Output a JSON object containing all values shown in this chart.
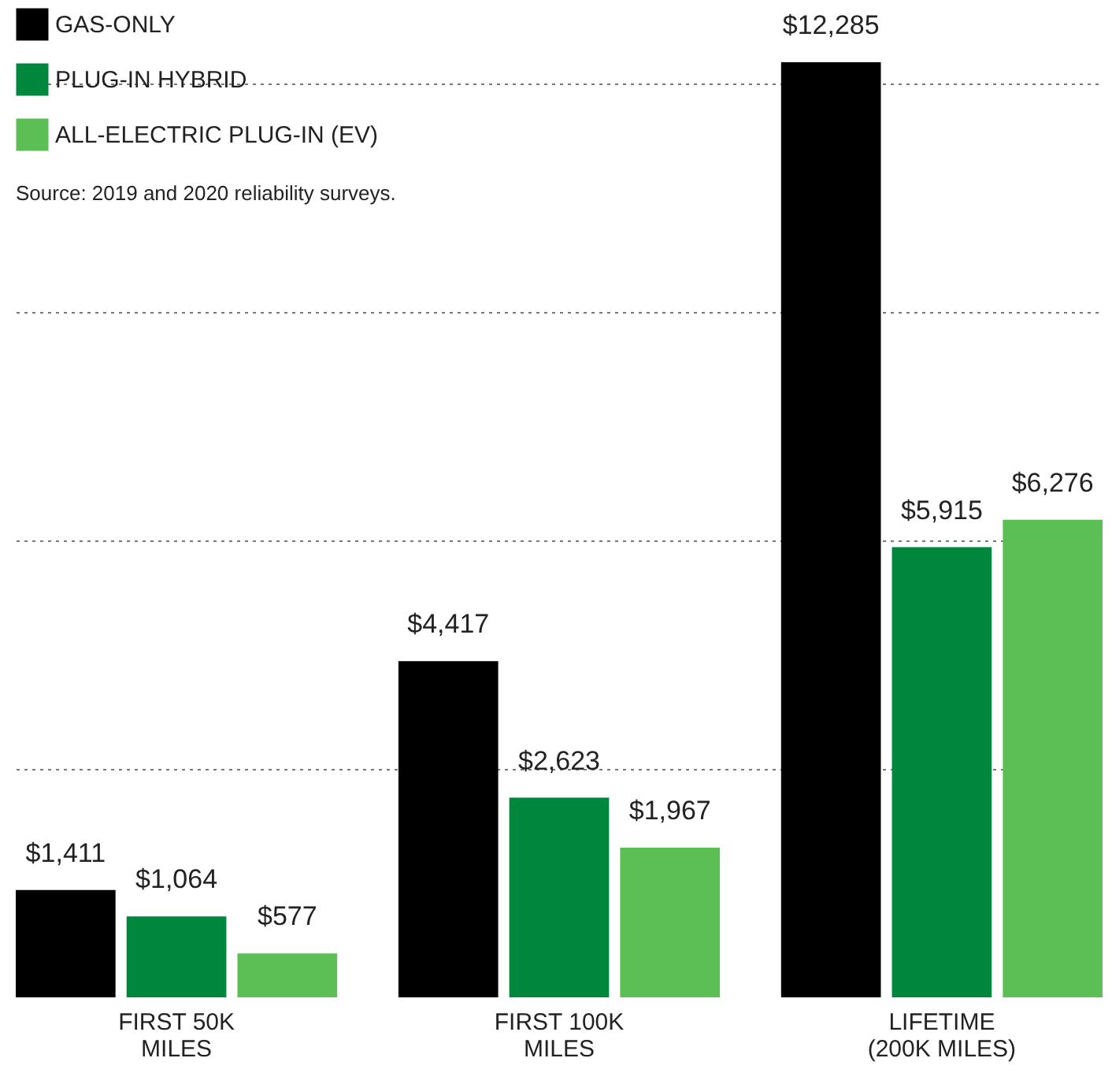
{
  "chart_data": {
    "type": "bar",
    "categories": [
      "FIRST 50K MILES",
      "FIRST 100K MILES",
      "LIFETIME (200K MILES)"
    ],
    "series": [
      {
        "name": "GAS-ONLY",
        "color": "#000000",
        "values": [
          1411,
          4417,
          12285
        ],
        "value_labels": [
          "$1,411",
          "$4,417",
          "$12,285"
        ]
      },
      {
        "name": "PLUG-IN HYBRID",
        "color": "#00873e",
        "values": [
          1064,
          2623,
          5915
        ],
        "value_labels": [
          "$1,064",
          "$2,623",
          "$5,915"
        ]
      },
      {
        "name": "ALL-ELECTRIC PLUG-IN (EV)",
        "color": "#5cbf55",
        "values": [
          577,
          1967,
          6276
        ],
        "value_labels": [
          "$577",
          "$1,967",
          "$6,276"
        ]
      }
    ],
    "ylim": [
      0,
      13000
    ],
    "yticks": [
      {
        "value": 3000,
        "label": null
      },
      {
        "value": 6000,
        "label": null
      },
      {
        "value": 9000,
        "label": null
      },
      {
        "value": 12000,
        "label": null
      }
    ],
    "grid": "y",
    "legend": "top left",
    "tick_labels": "x",
    "annotations": [
      "Source: 2019 and 2020 reliability surveys."
    ]
  }
}
